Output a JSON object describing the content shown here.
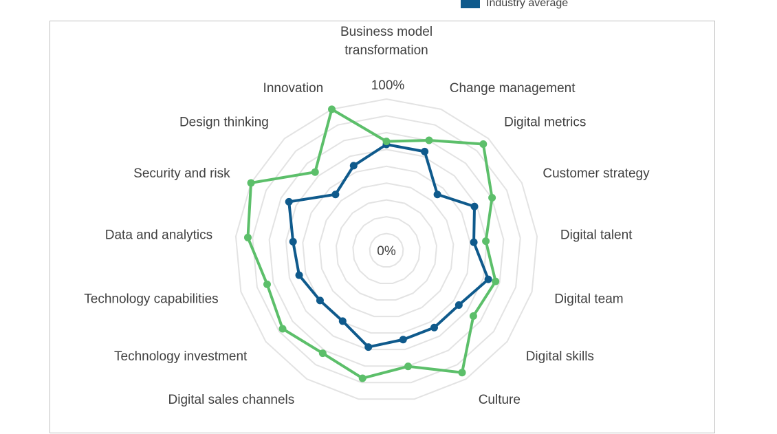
{
  "legend": {
    "items": [
      {
        "label": "Industry average",
        "color": "#0f5a8c"
      }
    ]
  },
  "chart_data": {
    "type": "radar",
    "title": "",
    "categories": [
      "Business model transformation",
      "Change management",
      "Digital metrics",
      "Customer strategy",
      "Digital talent",
      "Digital team",
      "Digital skills",
      "Culture",
      "",
      "",
      "Digital sales channels",
      "Technology investment",
      "Technology capabilities",
      "Data and analytics",
      "Security and risk",
      "Design thinking",
      "Innovation"
    ],
    "rlim": [
      0,
      100
    ],
    "tick_labels": {
      "min": "0%",
      "max": "100%"
    },
    "gridlines": true,
    "series": [
      {
        "name": "Industry average",
        "color": "#0f5a8c",
        "values": [
          70,
          70,
          50,
          65,
          58,
          70,
          60,
          60,
          60,
          65,
          55,
          55,
          60,
          62,
          72,
          50,
          60
        ]
      },
      {
        "color": "#5cbf6a",
        "values": [
          72,
          78,
          95,
          78,
          66,
          75,
          72,
          95,
          78,
          86,
          80,
          86,
          82,
          92,
          100,
          70,
          100
        ]
      }
    ]
  }
}
